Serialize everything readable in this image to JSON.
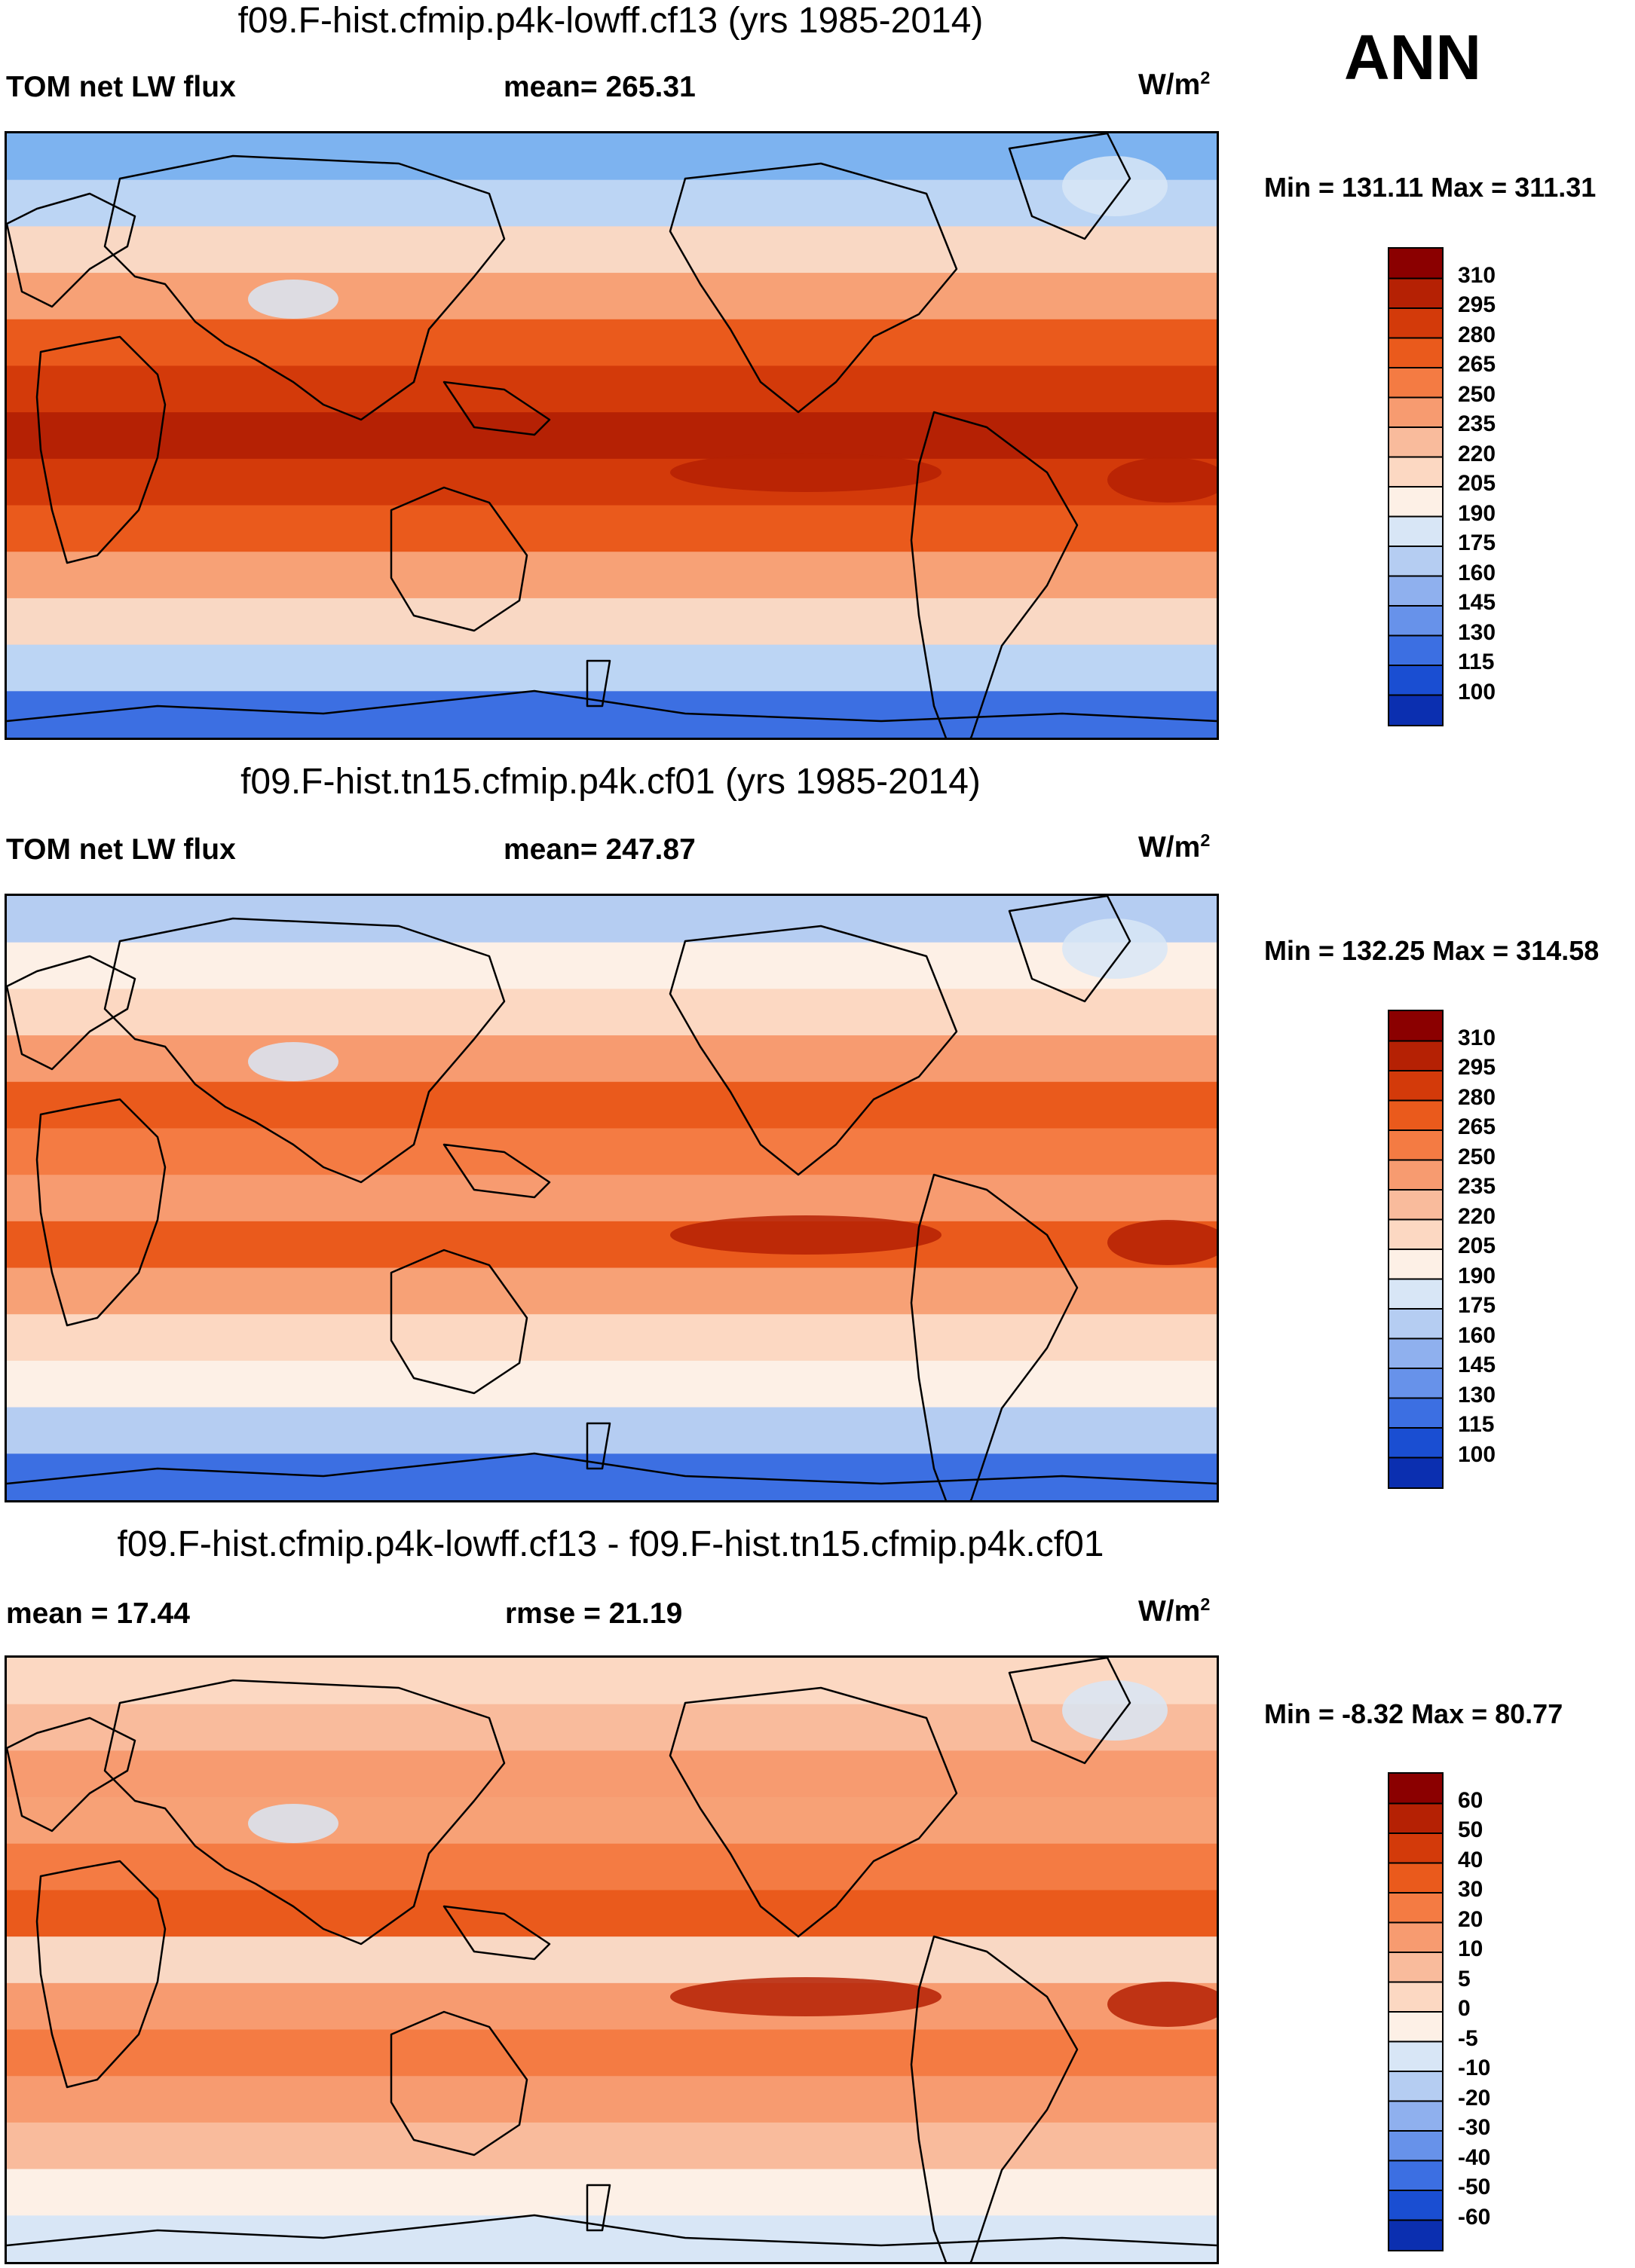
{
  "season": "ANN",
  "units": "W/m",
  "units_sup": "2",
  "panels": [
    {
      "title": "f09.F-hist.cfmip.p4k-lowff.cf13 (yrs 1985-2014)",
      "left_label": "TOM net LW flux",
      "center_label": "mean= 265.31",
      "minmax": "Min = 131.11 Max = 311.31",
      "colorbar": {
        "ticks": [
          "310",
          "295",
          "280",
          "265",
          "250",
          "235",
          "220",
          "205",
          "190",
          "175",
          "160",
          "145",
          "130",
          "115",
          "100"
        ],
        "colors": [
          "#8b0000",
          "#b52104",
          "#d33a0a",
          "#ea5a1c",
          "#f47b43",
          "#f79b70",
          "#f9bb9c",
          "#fcd8c2",
          "#fdf0e6",
          "#d8e6f6",
          "#b5cdf2",
          "#8fb0ee",
          "#6792ea",
          "#3c6fe2",
          "#1a4ed2",
          "#0b2fb0"
        ]
      },
      "bands": [
        "#7db3f0",
        "#bcd5f4",
        "#f9d8c4",
        "#f7a176",
        "#ea5a1c",
        "#d33a0a",
        "#b52104",
        "#d33a0a",
        "#ea5a1c",
        "#f7a176",
        "#f9d8c4",
        "#bcd5f4",
        "#3c6fe2"
      ]
    },
    {
      "title": "f09.F-hist.tn15.cfmip.p4k.cf01 (yrs 1985-2014)",
      "left_label": "TOM net LW flux",
      "center_label": "mean= 247.87",
      "minmax": "Min = 132.25 Max = 314.58",
      "colorbar": {
        "ticks": [
          "310",
          "295",
          "280",
          "265",
          "250",
          "235",
          "220",
          "205",
          "190",
          "175",
          "160",
          "145",
          "130",
          "115",
          "100"
        ],
        "colors": [
          "#8b0000",
          "#b52104",
          "#d33a0a",
          "#ea5a1c",
          "#f47b43",
          "#f79b70",
          "#f9bb9c",
          "#fcd8c2",
          "#fdf0e6",
          "#d8e6f6",
          "#b5cdf2",
          "#8fb0ee",
          "#6792ea",
          "#3c6fe2",
          "#1a4ed2",
          "#0b2fb0"
        ]
      },
      "bands": [
        "#b5cdf2",
        "#fdf0e6",
        "#fcd8c2",
        "#f79b70",
        "#ea5a1c",
        "#f47b43",
        "#f79b70",
        "#ea5a1c",
        "#f7a176",
        "#fcd8c2",
        "#fdf0e6",
        "#b5cdf2",
        "#3c6fe2"
      ]
    },
    {
      "title": "f09.F-hist.cfmip.p4k-lowff.cf13 - f09.F-hist.tn15.cfmip.p4k.cf01",
      "left_label": "mean =  17.44",
      "center_label": "rmse =  21.19",
      "minmax": "Min =  -8.32 Max =  80.77",
      "colorbar": {
        "ticks": [
          "60",
          "50",
          "40",
          "30",
          "20",
          "10",
          "5",
          "0",
          "-5",
          "-10",
          "-20",
          "-30",
          "-40",
          "-50",
          "-60"
        ],
        "colors": [
          "#8b0000",
          "#b52104",
          "#d33a0a",
          "#ea5a1c",
          "#f47b43",
          "#f79b70",
          "#f9bb9c",
          "#fcd8c2",
          "#fdf0e6",
          "#d8e6f6",
          "#b5cdf2",
          "#8fb0ee",
          "#6792ea",
          "#3c6fe2",
          "#1a4ed2",
          "#0b2fb0"
        ]
      },
      "bands": [
        "#fcd8c2",
        "#f9bb9c",
        "#f79b70",
        "#f7a176",
        "#f47b43",
        "#ea5a1c",
        "#f9d8c4",
        "#f79b70",
        "#f47b43",
        "#f79b70",
        "#f9bb9c",
        "#fdf0e6",
        "#d8e6f6"
      ]
    }
  ],
  "chart_data": [
    {
      "type": "heatmap",
      "title": "f09.F-hist.cfmip.p4k-lowff.cf13 (yrs 1985-2014)",
      "variable": "TOM net LW flux",
      "units": "W/m2",
      "mean": 265.31,
      "min": 131.11,
      "max": 311.31,
      "levels": [
        310,
        295,
        280,
        265,
        250,
        235,
        220,
        205,
        190,
        175,
        160,
        145,
        130,
        115,
        100
      ]
    },
    {
      "type": "heatmap",
      "title": "f09.F-hist.tn15.cfmip.p4k.cf01 (yrs 1985-2014)",
      "variable": "TOM net LW flux",
      "units": "W/m2",
      "mean": 247.87,
      "min": 132.25,
      "max": 314.58,
      "levels": [
        310,
        295,
        280,
        265,
        250,
        235,
        220,
        205,
        190,
        175,
        160,
        145,
        130,
        115,
        100
      ]
    },
    {
      "type": "heatmap",
      "title": "f09.F-hist.cfmip.p4k-lowff.cf13 - f09.F-hist.tn15.cfmip.p4k.cf01",
      "units": "W/m2",
      "mean": 17.44,
      "rmse": 21.19,
      "min": -8.32,
      "max": 80.77,
      "levels": [
        60,
        50,
        40,
        30,
        20,
        10,
        5,
        0,
        -5,
        -10,
        -20,
        -30,
        -40,
        -50,
        -60
      ]
    }
  ]
}
